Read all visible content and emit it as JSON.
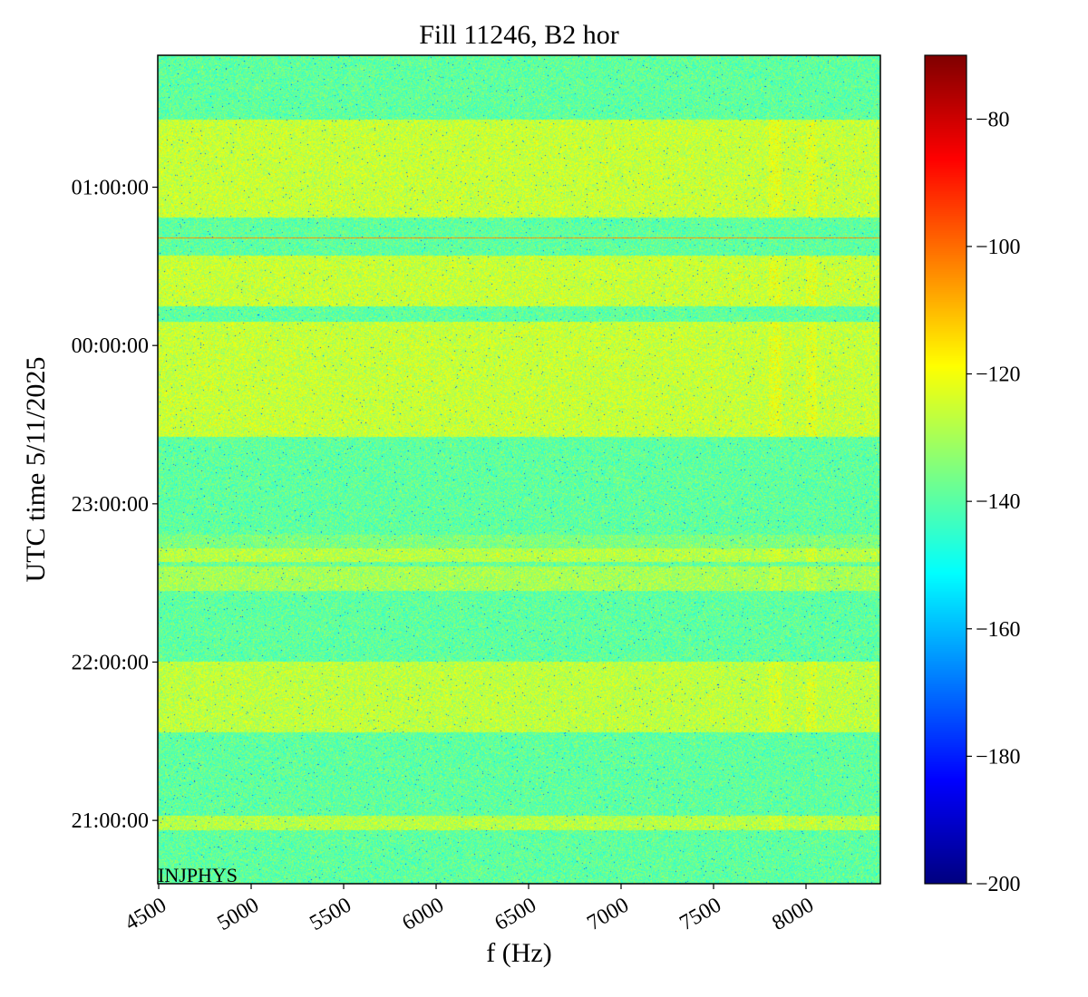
{
  "chart_data": {
    "type": "heatmap",
    "title": "Fill 11246, B2 hor",
    "xlabel": "f (Hz)",
    "ylabel": "UTC time 5/11/2025",
    "annotation": "INJPHYS",
    "xlim": [
      4495,
      8402
    ],
    "x_ticks": [
      4500,
      5000,
      5500,
      6000,
      6500,
      7000,
      7500,
      8000
    ],
    "x_tick_labels": [
      "4500",
      "5000",
      "5500",
      "6000",
      "6500",
      "7000",
      "7500",
      "8000"
    ],
    "y_unit": "minutes relative to 00:00:00 UTC",
    "ylim": [
      -204,
      110
    ],
    "y_ticks": [
      60,
      0,
      -60,
      -120,
      -180
    ],
    "y_tick_labels": [
      "01:00:00",
      "00:00:00",
      "23:00:00",
      "22:00:00",
      "21:00:00"
    ],
    "colorbar": {
      "colormap": "jet",
      "range": [
        -200,
        -70
      ],
      "ticks": [
        -80,
        -100,
        -120,
        -140,
        -160,
        -180,
        -200
      ],
      "tick_labels": [
        "−80",
        "−100",
        "−120",
        "−140",
        "−160",
        "−180",
        "−200"
      ]
    },
    "bands_dB": [
      {
        "t_start": 85.5,
        "t_end": 110,
        "level": -139
      },
      {
        "t_start": 48.4,
        "t_end": 85.5,
        "level": -126
      },
      {
        "t_start": 34,
        "t_end": 48.4,
        "level": -139
      },
      {
        "t_start": 14.8,
        "t_end": 34,
        "level": -126
      },
      {
        "t_start": 8.9,
        "t_end": 14.8,
        "level": -139
      },
      {
        "t_start": -34.7,
        "t_end": 8.9,
        "level": -126
      },
      {
        "t_start": -71.8,
        "t_end": -34.7,
        "level": -139
      },
      {
        "t_start": -76.9,
        "t_end": -71.8,
        "level": -135
      },
      {
        "t_start": -82.1,
        "t_end": -76.9,
        "level": -128
      },
      {
        "t_start": -83.8,
        "t_end": -82.1,
        "level": -138
      },
      {
        "t_start": -93,
        "t_end": -83.8,
        "level": -130
      },
      {
        "t_start": -119.8,
        "t_end": -93,
        "level": -139
      },
      {
        "t_start": -146.6,
        "t_end": -119.8,
        "level": -127
      },
      {
        "t_start": -178.2,
        "t_end": -146.6,
        "level": -139
      },
      {
        "t_start": -183.7,
        "t_end": -178.2,
        "level": -128
      },
      {
        "t_start": -204,
        "t_end": -183.7,
        "level": -139
      }
    ],
    "lines_dB": [
      {
        "t": 40.9,
        "level": -104
      }
    ],
    "freq_features_dB": [
      {
        "f_start": 7800,
        "f_end": 7870,
        "boost": 3
      },
      {
        "f_start": 8000,
        "f_end": 8060,
        "boost": 3
      }
    ],
    "noise_std_dB": 4.5
  }
}
